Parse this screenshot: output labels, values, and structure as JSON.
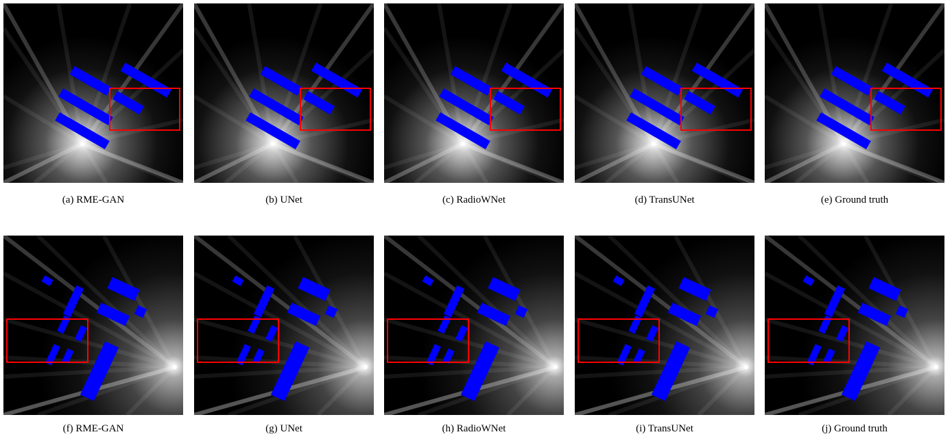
{
  "panels": [
    {
      "caption": "(a) RME-GAN"
    },
    {
      "caption": "(b) UNet"
    },
    {
      "caption": "(c) RadioWNet"
    },
    {
      "caption": "(d) TransUNet"
    },
    {
      "caption": "(e) Ground truth"
    },
    {
      "caption": "(f) RME-GAN"
    },
    {
      "caption": "(g) UNet"
    },
    {
      "caption": "(h) RadioWNet"
    },
    {
      "caption": "(i) TransUNet"
    },
    {
      "caption": "(j) Ground truth"
    }
  ]
}
